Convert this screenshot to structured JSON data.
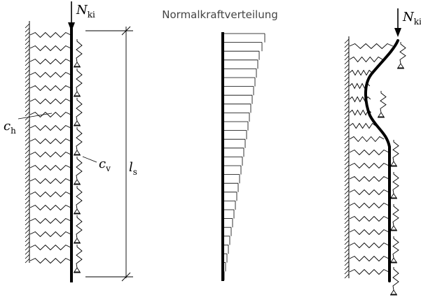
{
  "title": "Normalkraftverteilung",
  "left_panel": {
    "load": {
      "symbol": "N",
      "subscript": "ki"
    },
    "spring_h": {
      "symbol": "c",
      "subscript": "h"
    },
    "spring_v": {
      "symbol": "c",
      "subscript": "v"
    },
    "length": {
      "symbol": "l",
      "subscript": "s"
    }
  },
  "right_panel": {
    "load": {
      "symbol": "N",
      "subscript": "ki"
    }
  },
  "colors": {
    "ink": "#000000",
    "background": "#ffffff"
  }
}
